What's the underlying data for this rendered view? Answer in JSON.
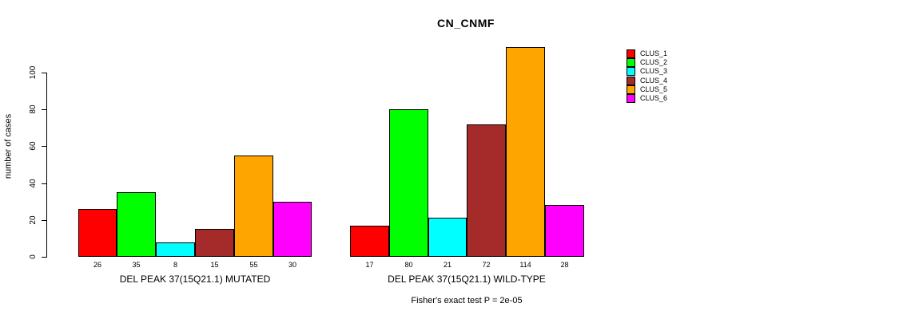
{
  "chart": {
    "title": "CN_CNMF",
    "ylabel": "number of cases",
    "footnote": "Fisher's exact test P = 2e-05"
  },
  "chart_data": {
    "type": "bar",
    "title": "CN_CNMF",
    "xlabel": "",
    "ylabel": "number of cases",
    "ylim": [
      0,
      115
    ],
    "yticks": [
      0,
      20,
      40,
      60,
      80,
      100
    ],
    "grid": false,
    "legend_position": "right-outside",
    "bar_value_labels_shown": true,
    "annotation": "Fisher's exact test P = 2e-05",
    "categories": [
      "DEL PEAK 37(15Q21.1) MUTATED",
      "DEL PEAK 37(15Q21.1) WILD-TYPE"
    ],
    "series": [
      {
        "name": "CLUS_1",
        "color": "#FF0000",
        "values": [
          26,
          17
        ]
      },
      {
        "name": "CLUS_2",
        "color": "#00FF00",
        "values": [
          35,
          80
        ]
      },
      {
        "name": "CLUS_3",
        "color": "#00FFFF",
        "values": [
          8,
          21
        ]
      },
      {
        "name": "CLUS_4",
        "color": "#A52A2A",
        "values": [
          15,
          72
        ]
      },
      {
        "name": "CLUS_5",
        "color": "#FFA500",
        "values": [
          55,
          114
        ]
      },
      {
        "name": "CLUS_6",
        "color": "#FF00FF",
        "values": [
          30,
          28
        ]
      }
    ],
    "colors": {
      "axis": "#000000",
      "background": "#FFFFFF"
    }
  }
}
